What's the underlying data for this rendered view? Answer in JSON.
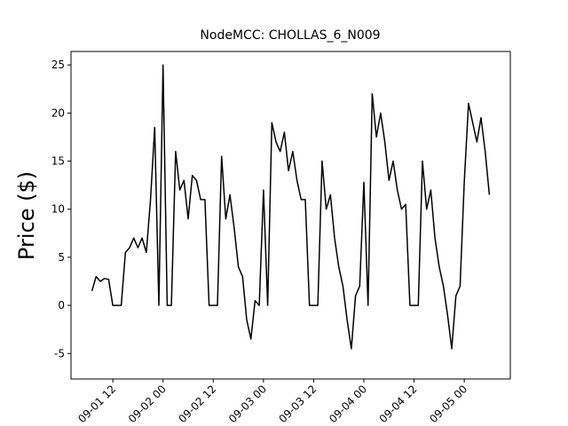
{
  "chart_data": {
    "type": "line",
    "title": "NodeMCC: CHOLLAS_6_N009",
    "y_label": "Price ($)",
    "x": [
      "09-01 07",
      "09-01 08",
      "09-01 09",
      "09-01 10",
      "09-01 11",
      "09-01 12",
      "09-01 13",
      "09-01 14",
      "09-01 15",
      "09-01 16",
      "09-01 17",
      "09-01 18",
      "09-01 19",
      "09-01 20",
      "09-01 21",
      "09-01 22",
      "09-01 23",
      "09-02 00",
      "09-02 01",
      "09-02 02",
      "09-02 03",
      "09-02 04",
      "09-02 05",
      "09-02 06",
      "09-02 07",
      "09-02 08",
      "09-02 09",
      "09-02 10",
      "09-02 11",
      "09-02 12",
      "09-02 13",
      "09-02 14",
      "09-02 15",
      "09-02 16",
      "09-02 17",
      "09-02 18",
      "09-02 19",
      "09-02 20",
      "09-02 21",
      "09-02 22",
      "09-02 23",
      "09-03 00",
      "09-03 01",
      "09-03 02",
      "09-03 03",
      "09-03 04",
      "09-03 05",
      "09-03 06",
      "09-03 07",
      "09-03 08",
      "09-03 09",
      "09-03 10",
      "09-03 11",
      "09-03 12",
      "09-03 13",
      "09-03 14",
      "09-03 15",
      "09-03 16",
      "09-03 17",
      "09-03 18",
      "09-03 19",
      "09-03 20",
      "09-03 21",
      "09-03 22",
      "09-03 23",
      "09-04 00",
      "09-04 01",
      "09-04 02",
      "09-04 03",
      "09-04 04",
      "09-04 05",
      "09-04 06",
      "09-04 07",
      "09-04 08",
      "09-04 09",
      "09-04 10",
      "09-04 11",
      "09-04 12",
      "09-04 13",
      "09-04 14",
      "09-04 15",
      "09-04 16",
      "09-04 17",
      "09-04 18",
      "09-04 19",
      "09-04 20",
      "09-04 21",
      "09-04 22",
      "09-04 23",
      "09-05 00",
      "09-05 01",
      "09-05 02",
      "09-05 03",
      "09-05 04",
      "09-05 05",
      "09-05 06"
    ],
    "series": [
      {
        "color": "#000000",
        "values": [
          1.5,
          3,
          2.5,
          2.8,
          2.7,
          0,
          0,
          0,
          5.5,
          6,
          7,
          6,
          7,
          5.5,
          11,
          18.5,
          0,
          25,
          0,
          0,
          16,
          12,
          13,
          9,
          13.5,
          13,
          11,
          11,
          0,
          0,
          0,
          15.5,
          9,
          11.5,
          8,
          4,
          3,
          -1.5,
          -3.5,
          0.5,
          0,
          12,
          0,
          19,
          17,
          16,
          18,
          14,
          16,
          13,
          11,
          11,
          0,
          0,
          0,
          15,
          10,
          11.5,
          7,
          4,
          2,
          -1.5,
          -4.5,
          1,
          2,
          12.8,
          0,
          22,
          17.5,
          20,
          17,
          13,
          15,
          12,
          10,
          10.5,
          0,
          0,
          0,
          15,
          10,
          12,
          7,
          4,
          2,
          -1,
          -4.5,
          1,
          2,
          12.8,
          21,
          19,
          17,
          19.5,
          16,
          11.5
        ]
      }
    ],
    "xlim": [
      "09-01 02",
      "09-05 11"
    ],
    "xticks": [
      "09-01 12",
      "09-02 00",
      "09-02 12",
      "09-03 00",
      "09-03 12",
      "09-04 00",
      "09-04 12",
      "09-05 00"
    ],
    "ylim": [
      -7.65,
      26.4
    ],
    "yticks": [
      -5,
      0,
      5,
      10,
      15,
      20,
      25
    ]
  }
}
